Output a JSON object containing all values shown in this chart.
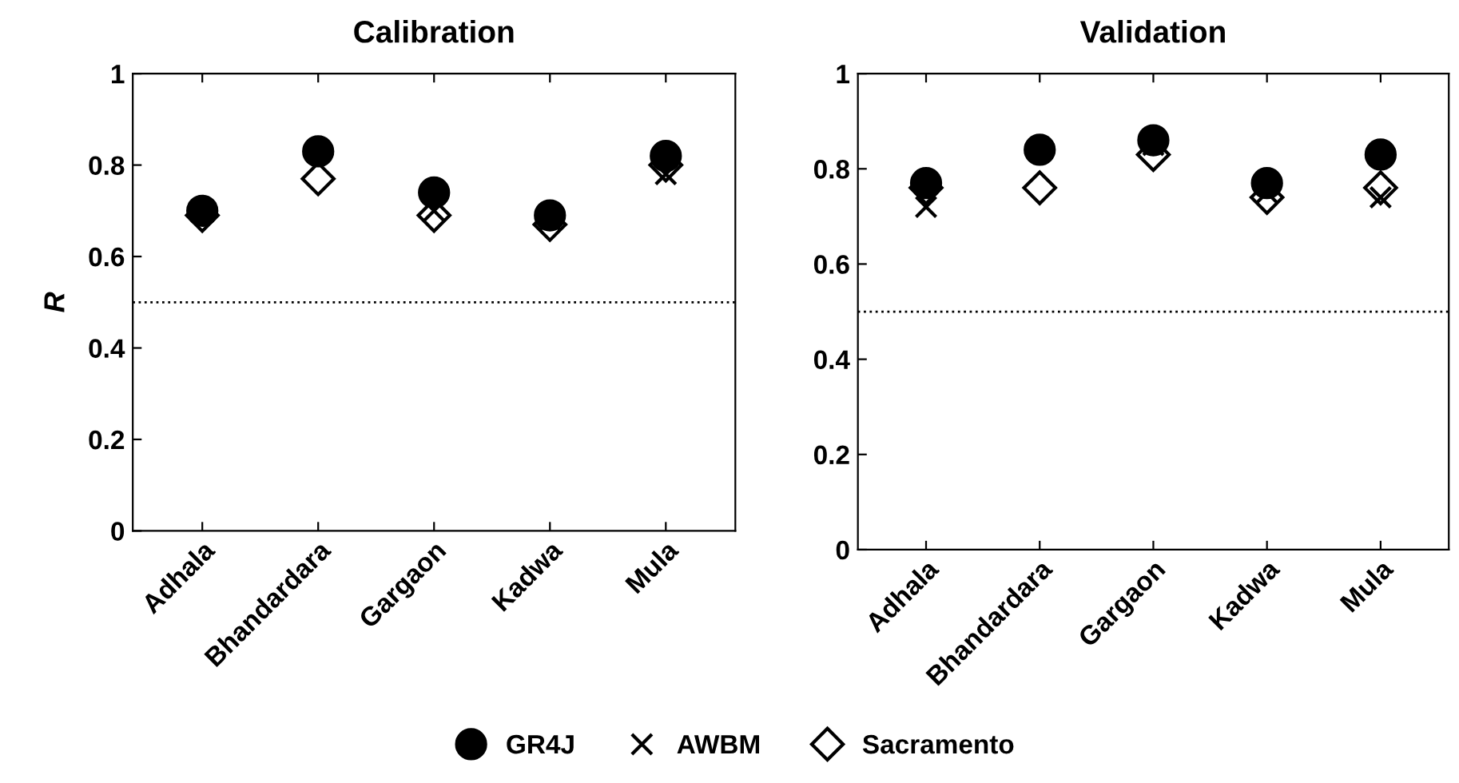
{
  "chart_data": [
    {
      "type": "scatter",
      "title": "Calibration",
      "ylabel": "R",
      "categories": [
        "Adhala",
        "Bhandardara",
        "Gargaon",
        "Kadwa",
        "Mula"
      ],
      "ylim": [
        0,
        1
      ],
      "yticks": [
        0,
        0.2,
        0.4,
        0.6,
        0.8,
        1
      ],
      "grid": false,
      "legend": "bottom",
      "series": [
        {
          "name": "GR4J",
          "color": "#000000",
          "marker": "circle",
          "values": [
            0.7,
            0.83,
            0.74,
            0.69,
            0.82
          ]
        },
        {
          "name": "AWBM",
          "color": "#000000",
          "marker": "cross",
          "values": [
            null,
            null,
            0.7,
            0.68,
            0.78
          ]
        },
        {
          "name": "Sacramento",
          "color": "#000000",
          "marker": "diamond",
          "values": [
            0.69,
            0.77,
            0.69,
            0.67,
            0.8
          ]
        }
      ],
      "ref_lines": [
        {
          "axis": "y",
          "value": 0.5,
          "line_style": "dotted",
          "color": "#000000"
        }
      ]
    },
    {
      "type": "scatter",
      "title": "Validation",
      "categories": [
        "Adhala",
        "Bhandardara",
        "Gargaon",
        "Kadwa",
        "Mula"
      ],
      "ylim": [
        0,
        1
      ],
      "yticks": [
        0,
        0.2,
        0.4,
        0.6,
        0.8,
        1
      ],
      "grid": false,
      "series": [
        {
          "name": "GR4J",
          "color": "#000000",
          "marker": "circle",
          "values": [
            0.77,
            0.84,
            0.86,
            0.77,
            0.83
          ]
        },
        {
          "name": "AWBM",
          "color": "#000000",
          "marker": "cross",
          "values": [
            0.72,
            null,
            0.85,
            0.75,
            0.74
          ]
        },
        {
          "name": "Sacramento",
          "color": "#000000",
          "marker": "diamond",
          "values": [
            0.76,
            0.76,
            0.83,
            0.74,
            0.76
          ]
        }
      ],
      "ref_lines": [
        {
          "axis": "y",
          "value": 0.5,
          "line_style": "dotted",
          "color": "#000000"
        }
      ]
    }
  ]
}
